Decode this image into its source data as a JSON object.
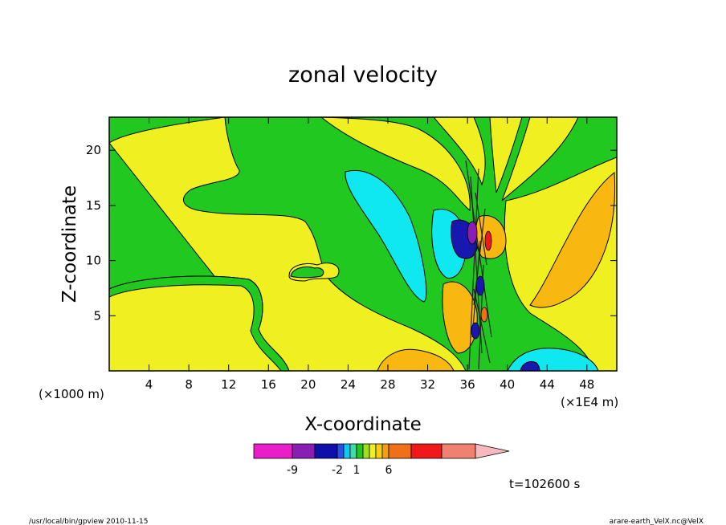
{
  "chart_data": {
    "type": "heatmap",
    "title": "zonal velocity",
    "xlabel": "X-coordinate",
    "ylabel": "Z-coordinate",
    "x_unit_left": "(×1000 m)",
    "x_unit_right": "(×1E4 m)",
    "xlim": [
      0,
      51
    ],
    "ylim": [
      0,
      23
    ],
    "x_ticks": [
      4,
      8,
      12,
      16,
      20,
      24,
      28,
      32,
      36,
      40,
      44,
      48
    ],
    "y_ticks": [
      5,
      10,
      15,
      20
    ],
    "colorbar": {
      "colors": [
        "#e81ec8",
        "#8a1eb4",
        "#1010a8",
        "#2a4ee6",
        "#10c8f0",
        "#48d8a8",
        "#20c820",
        "#a0e020",
        "#f0f020",
        "#f8d010",
        "#f0a010",
        "#f07018",
        "#f01818",
        "#f08070",
        "#f8b8c0"
      ],
      "tick_labels": [
        "-9",
        "-2",
        "1",
        "6"
      ]
    },
    "time_label": "t=102600 s"
  },
  "footer": {
    "left": "/usr/local/bin/gpview  2010-11-15",
    "right": "arare-earth_VelX.nc@VelX"
  },
  "colors": {
    "green": "#20c820",
    "yellow": "#f0f020",
    "cyan": "#10e8f0",
    "orange": "#f8b810",
    "blue": "#1818b0"
  }
}
